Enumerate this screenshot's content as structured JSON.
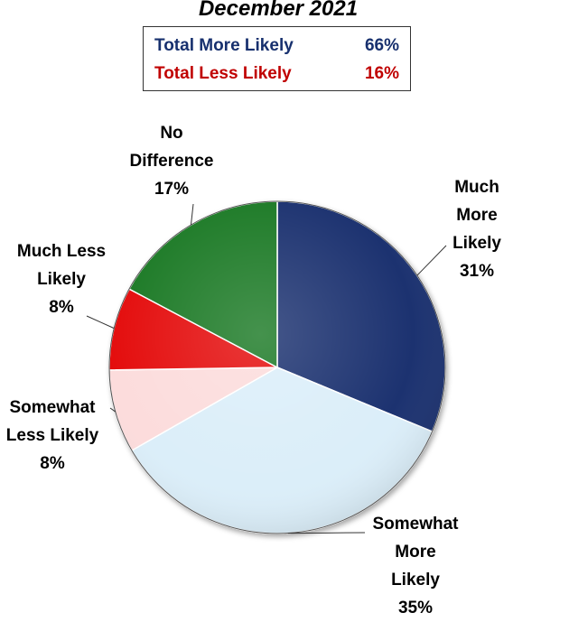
{
  "title": "December 2021",
  "summary": {
    "more_label": "Total More Likely",
    "more_value": "66%",
    "less_label": "Total Less Likely",
    "less_value": "16%"
  },
  "chart_data": {
    "type": "pie",
    "title": "December 2021",
    "slices": [
      {
        "name": "Much More Likely",
        "label": "Much\nMore\nLikely",
        "value": 31,
        "value_label": "31%",
        "color": "#1a3370"
      },
      {
        "name": "Somewhat More Likely",
        "label": "Somewhat\nMore\nLikely",
        "value": 35,
        "value_label": "35%",
        "color": "#dbeef9"
      },
      {
        "name": "Somewhat Less Likely",
        "label": "Somewhat\nLess Likely",
        "value": 8,
        "value_label": "8%",
        "color": "#fcdcdc"
      },
      {
        "name": "Much Less Likely",
        "label": "Much Less\nLikely",
        "value": 8,
        "value_label": "8%",
        "color": "#e40c0c"
      },
      {
        "name": "No Difference",
        "label": "No\nDifference",
        "value": 17,
        "value_label": "17%",
        "color": "#1d7a25"
      }
    ]
  },
  "colors": {
    "more_text": "#17306e",
    "less_text": "#c00000"
  }
}
